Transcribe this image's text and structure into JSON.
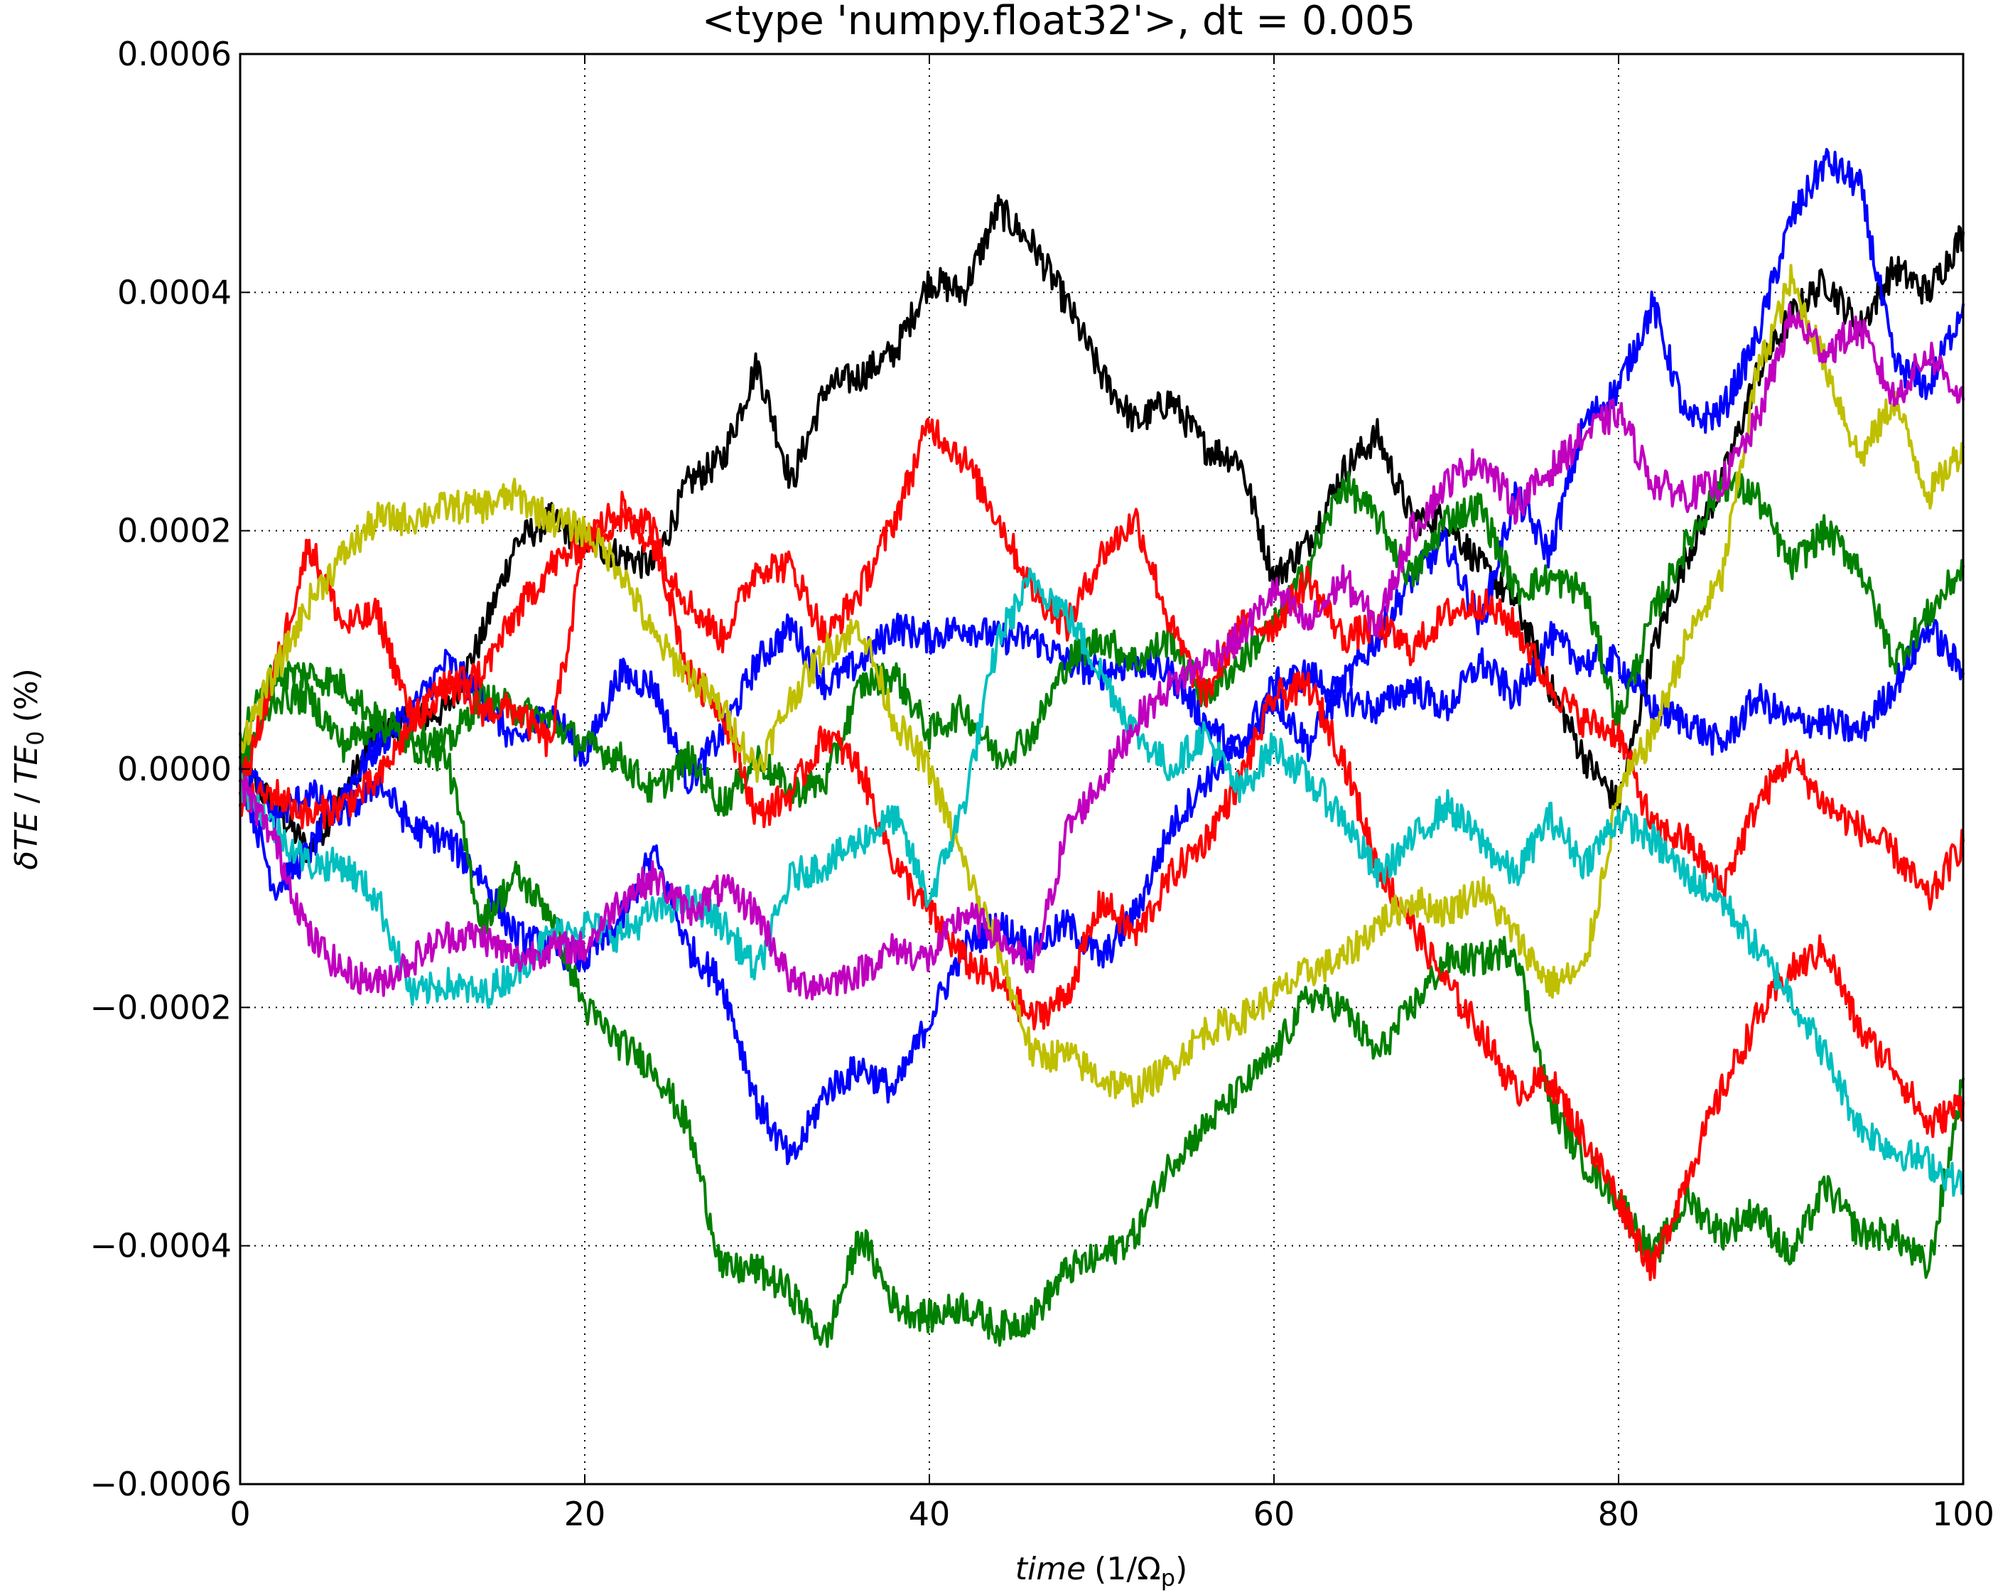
{
  "chart_data": {
    "type": "line",
    "title": "<type 'numpy.float32'>, dt = 0.005",
    "xlabel": {
      "main": "time",
      "paren_open": "(1/Ω",
      "subscript": "p",
      "paren_close": ")"
    },
    "ylabel": {
      "delta": "δ",
      "te": "TE",
      "slash": "/",
      "te0": "TE",
      "subscript": "0",
      "unit": "(%)"
    },
    "xlim": [
      0,
      100
    ],
    "ylim": [
      -0.0006,
      0.0006
    ],
    "grid": true,
    "x_ticks": [
      0,
      20,
      40,
      60,
      80,
      100
    ],
    "x_tick_labels": [
      "0",
      "20",
      "40",
      "60",
      "80",
      "100"
    ],
    "y_ticks": [
      0.0006,
      0.0004,
      0.0002,
      0.0,
      -0.0002,
      -0.0004,
      -0.0006
    ],
    "y_tick_labels": [
      "0.0006",
      "0.0004",
      "0.0002",
      "0.0000",
      "−0.0002",
      "−0.0004",
      "−0.0006"
    ],
    "x": [
      0,
      2,
      4,
      6,
      8,
      10,
      12,
      14,
      16,
      18,
      20,
      22,
      24,
      26,
      28,
      30,
      32,
      34,
      36,
      38,
      40,
      42,
      44,
      46,
      48,
      50,
      52,
      54,
      56,
      58,
      60,
      62,
      64,
      66,
      68,
      70,
      72,
      74,
      76,
      78,
      80,
      82,
      84,
      86,
      88,
      90,
      92,
      94,
      96,
      98,
      100
    ],
    "series": [
      {
        "color": "#000000",
        "values": [
          0.0,
          -3e-05,
          -7e-05,
          -2e-05,
          3e-05,
          4e-05,
          5e-05,
          0.00011,
          0.00019,
          0.00021,
          0.00019,
          0.00018,
          0.00017,
          0.00024,
          0.00026,
          0.00034,
          0.00024,
          0.00032,
          0.00033,
          0.00035,
          0.00041,
          0.0004,
          0.00047,
          0.00044,
          0.00039,
          0.00033,
          0.00029,
          0.00031,
          0.00027,
          0.00026,
          0.00016,
          0.00019,
          0.00025,
          0.00028,
          0.00021,
          0.00021,
          0.00017,
          0.00014,
          7e-05,
          1e-05,
          -3e-05,
          0.0001,
          0.00018,
          0.00024,
          0.00033,
          0.00038,
          0.00041,
          0.00037,
          0.00042,
          0.0004,
          0.00045
        ]
      },
      {
        "color": "#0000ff",
        "values": [
          0.0,
          -0.0001,
          -7e-05,
          -2e-05,
          2e-05,
          5e-05,
          9e-05,
          6e-05,
          2e-05,
          5e-05,
          1e-05,
          8e-05,
          7e-05,
          -1e-05,
          3e-05,
          9e-05,
          0.00012,
          7e-05,
          9e-05,
          0.00012,
          0.00011,
          0.00012,
          0.00011,
          0.00011,
          9e-05,
          8e-05,
          9e-05,
          8e-05,
          4e-05,
          1e-05,
          6e-05,
          2e-05,
          7e-05,
          0.00011,
          0.00016,
          0.00019,
          0.00012,
          0.00023,
          0.00018,
          0.00029,
          0.00032,
          0.00039,
          0.00029,
          0.0003,
          0.00036,
          0.00046,
          0.00051,
          0.00049,
          0.00034,
          0.00032,
          0.00039
        ]
      },
      {
        "color": "#0000ff",
        "values": [
          1e-05,
          -4e-05,
          -2e-05,
          -4e-05,
          -1e-05,
          -5e-05,
          -6e-05,
          -9e-05,
          -0.00014,
          -0.00015,
          -0.00016,
          -0.00013,
          -7e-05,
          -0.00015,
          -0.00018,
          -0.00028,
          -0.00033,
          -0.00027,
          -0.00025,
          -0.00027,
          -0.00021,
          -0.00015,
          -0.00013,
          -0.00015,
          -0.00013,
          -0.00016,
          -0.00012,
          -5e-05,
          -1e-05,
          2e-05,
          7e-05,
          8e-05,
          6e-05,
          5e-05,
          7e-05,
          5e-05,
          9e-05,
          6e-05,
          0.00011,
          9e-05,
          9e-05,
          5e-05,
          4e-05,
          2e-05,
          6e-05,
          4e-05,
          4e-05,
          3e-05,
          7e-05,
          0.00012,
          8e-05
        ]
      },
      {
        "color": "#008000",
        "values": [
          3e-05,
          8e-05,
          8e-05,
          7e-05,
          4e-05,
          3e-05,
          2e-05,
          6e-05,
          5e-05,
          4e-05,
          2e-05,
          1e-05,
          -2e-05,
          1e-05,
          -3e-05,
          1e-05,
          -2e-05,
          -1e-05,
          7e-05,
          8e-05,
          3e-05,
          5e-05,
          1e-05,
          3e-05,
          9e-05,
          0.00011,
          9e-05,
          0.00011,
          6e-05,
          9e-05,
          0.00012,
          0.00017,
          0.00024,
          0.00021,
          0.00016,
          0.00021,
          0.00022,
          0.00015,
          0.00016,
          0.00015,
          4e-05,
          0.00013,
          0.00019,
          0.00024,
          0.00023,
          0.00017,
          0.0002,
          0.00017,
          9e-05,
          0.00013,
          0.00017
        ]
      },
      {
        "color": "#008000",
        "values": [
          0.0,
          6e-05,
          6e-05,
          2e-05,
          4e-05,
          2e-05,
          1e-05,
          -0.00013,
          -9e-05,
          -0.00012,
          -0.0002,
          -0.00023,
          -0.00025,
          -0.0003,
          -0.00042,
          -0.00042,
          -0.00044,
          -0.00048,
          -0.00039,
          -0.00045,
          -0.00046,
          -0.00045,
          -0.00047,
          -0.00046,
          -0.00042,
          -0.00041,
          -0.00039,
          -0.00033,
          -0.0003,
          -0.00027,
          -0.00024,
          -0.00019,
          -0.0002,
          -0.00024,
          -0.0002,
          -0.00016,
          -0.00016,
          -0.00015,
          -0.00028,
          -0.00033,
          -0.00036,
          -0.00041,
          -0.00036,
          -0.00039,
          -0.00037,
          -0.00041,
          -0.00035,
          -0.00039,
          -0.00039,
          -0.00042,
          -0.00026
        ]
      },
      {
        "color": "#ff0000",
        "values": [
          -2e-05,
          8e-05,
          0.00019,
          0.00012,
          0.00013,
          4e-05,
          7e-05,
          8e-05,
          0.00013,
          0.00017,
          0.00019,
          0.00021,
          0.00019,
          0.00014,
          0.00011,
          0.00017,
          0.00017,
          0.00011,
          0.00015,
          0.00021,
          0.00029,
          0.00026,
          0.00021,
          0.00015,
          0.00012,
          0.00018,
          0.00021,
          0.00012,
          6e-05,
          0.00012,
          0.00012,
          0.00016,
          0.00011,
          0.00012,
          0.0001,
          0.00013,
          0.00014,
          0.00012,
          7e-05,
          4e-05,
          3e-05,
          -5e-05,
          -6e-05,
          -0.0001,
          -3e-05,
          1e-05,
          -3e-05,
          -5e-05,
          -7e-05,
          -0.00011,
          -6e-05
        ]
      },
      {
        "color": "#ff0000",
        "values": [
          -3e-05,
          -2e-05,
          -4e-05,
          -3e-05,
          -1e-05,
          4e-05,
          7e-05,
          5e-05,
          5e-05,
          2e-05,
          0.00019,
          0.00022,
          0.0002,
          8e-05,
          5e-05,
          -4e-05,
          -2e-05,
          3e-05,
          0.0,
          -8e-05,
          -0.00012,
          -0.00016,
          -0.00018,
          -0.00021,
          -0.00019,
          -0.00011,
          -0.00014,
          -9e-05,
          -6e-05,
          -1e-05,
          6e-05,
          7e-05,
          1e-05,
          -8e-05,
          -0.00013,
          -0.00018,
          -0.00022,
          -0.00027,
          -0.00026,
          -0.00031,
          -0.00036,
          -0.00042,
          -0.00034,
          -0.00027,
          -0.00021,
          -0.00017,
          -0.00015,
          -0.00022,
          -0.00025,
          -0.0003,
          -0.00028
        ]
      },
      {
        "color": "#bfbf00",
        "values": [
          2e-05,
          8e-05,
          0.00014,
          0.00018,
          0.00021,
          0.00021,
          0.00022,
          0.00022,
          0.00023,
          0.00021,
          0.0002,
          0.00017,
          0.00011,
          8e-05,
          5e-05,
          0.0,
          6e-05,
          0.0001,
          0.00012,
          4e-05,
          0.0,
          -8e-05,
          -0.00015,
          -0.00024,
          -0.00024,
          -0.00026,
          -0.00027,
          -0.00025,
          -0.00022,
          -0.00021,
          -0.00019,
          -0.00017,
          -0.00016,
          -0.00013,
          -0.00011,
          -0.00012,
          -0.0001,
          -0.00014,
          -0.00018,
          -0.00017,
          -2e-05,
          3e-05,
          0.00011,
          0.00016,
          0.00033,
          0.00041,
          0.00034,
          0.00026,
          0.00031,
          0.00023,
          0.00027
        ]
      },
      {
        "color": "#00bfbf",
        "values": [
          -1e-05,
          -5e-05,
          -8e-05,
          -8e-05,
          -0.00011,
          -0.00019,
          -0.00018,
          -0.00019,
          -0.00017,
          -0.00014,
          -0.00013,
          -0.00014,
          -0.00012,
          -0.00011,
          -0.00013,
          -0.00017,
          -9e-05,
          -8e-05,
          -6e-05,
          -4e-05,
          -0.00011,
          -3e-05,
          0.00011,
          0.00016,
          0.00013,
          8e-05,
          3e-05,
          0.0,
          3e-05,
          -2e-05,
          2e-05,
          -1e-05,
          -4e-05,
          -9e-05,
          -6e-05,
          -3e-05,
          -6e-05,
          -9e-05,
          -4e-05,
          -8e-05,
          -4e-05,
          -6e-05,
          -9e-05,
          -0.00011,
          -0.00015,
          -0.00019,
          -0.00024,
          -0.0003,
          -0.00032,
          -0.00033,
          -0.00035
        ]
      },
      {
        "color": "#bf00bf",
        "values": [
          -1e-05,
          -6e-05,
          -0.00014,
          -0.00017,
          -0.00018,
          -0.00016,
          -0.00014,
          -0.00014,
          -0.00016,
          -0.00015,
          -0.00015,
          -0.00011,
          -9e-05,
          -0.00012,
          -0.0001,
          -0.00012,
          -0.00018,
          -0.00018,
          -0.00017,
          -0.00015,
          -0.00016,
          -0.00012,
          -0.00014,
          -0.00017,
          -5e-05,
          -1e-05,
          4e-05,
          7e-05,
          9e-05,
          0.00011,
          0.00015,
          0.00012,
          0.00016,
          0.00012,
          0.0002,
          0.00024,
          0.00026,
          0.00022,
          0.00025,
          0.00028,
          0.0003,
          0.00024,
          0.00023,
          0.00024,
          0.00029,
          0.00038,
          0.00035,
          0.00037,
          0.00031,
          0.00035,
          0.00031
        ]
      }
    ]
  }
}
